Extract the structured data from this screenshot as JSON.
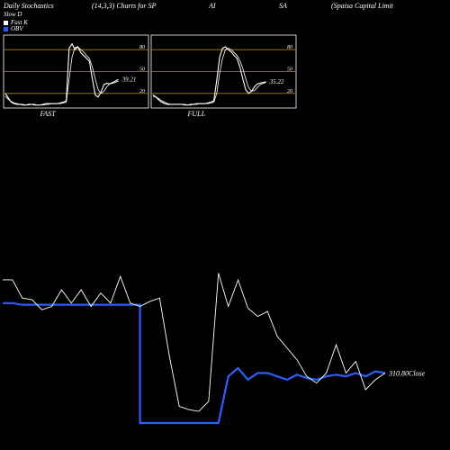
{
  "header": {
    "title": "Daily Stochastics",
    "params": "(14,3,3) Charts for SP",
    "sym1": "AI",
    "sym2": "SA",
    "company": "(Spaisa Capital Limit"
  },
  "legend": {
    "items": [
      {
        "label": "Slow D",
        "color": "#ffffff",
        "swatch": false
      },
      {
        "label": "Fast K",
        "color": "#ffffff",
        "swatch": true
      },
      {
        "label": "OBV",
        "color": "#1f5fff",
        "swatch": true
      }
    ],
    "slow_d_prefix": "Slow D"
  },
  "colors": {
    "background": "#000000",
    "level_lines": "#b8860b",
    "stoch_lines": "#ffffff",
    "obv": "#2a5fff",
    "price": "#ffffff"
  },
  "chart_data": [
    {
      "type": "line",
      "title": "FAST",
      "levels": [
        20,
        50,
        80
      ],
      "ylim": [
        0,
        100
      ],
      "last_value_label": "39.21",
      "series": [
        {
          "name": "Fast K",
          "values": [
            20,
            14,
            8,
            6,
            5,
            5,
            4,
            4,
            5,
            5,
            4,
            4,
            4,
            5,
            6,
            6,
            6,
            6,
            6,
            7,
            8,
            10,
            82,
            88,
            80,
            84,
            76,
            72,
            68,
            64,
            40,
            18,
            15,
            22,
            32,
            34,
            33,
            35,
            37,
            39
          ]
        },
        {
          "name": "Slow D",
          "values": [
            16,
            12,
            9,
            7,
            6,
            5,
            5,
            4,
            4,
            5,
            5,
            4,
            4,
            4,
            5,
            5,
            6,
            6,
            6,
            6,
            7,
            8,
            40,
            70,
            83,
            84,
            80,
            77,
            72,
            68,
            56,
            40,
            25,
            20,
            23,
            29,
            33,
            34,
            35,
            37
          ]
        }
      ]
    },
    {
      "type": "line",
      "title": "FULL",
      "levels": [
        20,
        50,
        80
      ],
      "ylim": [
        0,
        100
      ],
      "last_value_label": "35.22",
      "series": [
        {
          "name": "Full K",
          "values": [
            18,
            15,
            11,
            8,
            6,
            5,
            5,
            5,
            5,
            5,
            5,
            4,
            4,
            5,
            5,
            6,
            6,
            6,
            6,
            7,
            8,
            10,
            38,
            70,
            82,
            84,
            80,
            77,
            72,
            68,
            56,
            40,
            25,
            20,
            23,
            29,
            33,
            34,
            35,
            36
          ]
        },
        {
          "name": "Full D",
          "values": [
            16,
            15,
            13,
            10,
            8,
            6,
            5,
            5,
            5,
            5,
            5,
            5,
            4,
            4,
            5,
            5,
            6,
            6,
            6,
            6,
            7,
            8,
            20,
            48,
            68,
            80,
            82,
            80,
            76,
            72,
            65,
            54,
            40,
            28,
            23,
            24,
            28,
            32,
            34,
            35
          ]
        }
      ]
    },
    {
      "type": "line",
      "title": "",
      "close_label": "310.80Close",
      "series": [
        {
          "name": "Price",
          "values": [
            0.86,
            0.86,
            0.75,
            0.74,
            0.68,
            0.7,
            0.8,
            0.72,
            0.8,
            0.7,
            0.78,
            0.72,
            0.88,
            0.72,
            0.7,
            0.73,
            0.75,
            0.4,
            0.1,
            0.08,
            0.07,
            0.13,
            0.9,
            0.7,
            0.86,
            0.69,
            0.64,
            0.67,
            0.52,
            0.45,
            0.38,
            0.28,
            0.24,
            0.3,
            0.47,
            0.3,
            0.37,
            0.2,
            0.26,
            0.3
          ]
        },
        {
          "name": "OBV",
          "values": [
            0.72,
            0.72,
            0.71,
            0.71,
            0.71,
            0.71,
            0.71,
            0.71,
            0.71,
            0.71,
            0.71,
            0.71,
            0.71,
            0.71,
            0.0,
            0.0,
            0.0,
            0.0,
            0.0,
            0.0,
            0.0,
            0.0,
            0.0,
            0.28,
            0.33,
            0.26,
            0.3,
            0.3,
            0.28,
            0.26,
            0.29,
            0.27,
            0.26,
            0.28,
            0.29,
            0.28,
            0.3,
            0.28,
            0.31,
            0.3
          ]
        }
      ]
    }
  ]
}
